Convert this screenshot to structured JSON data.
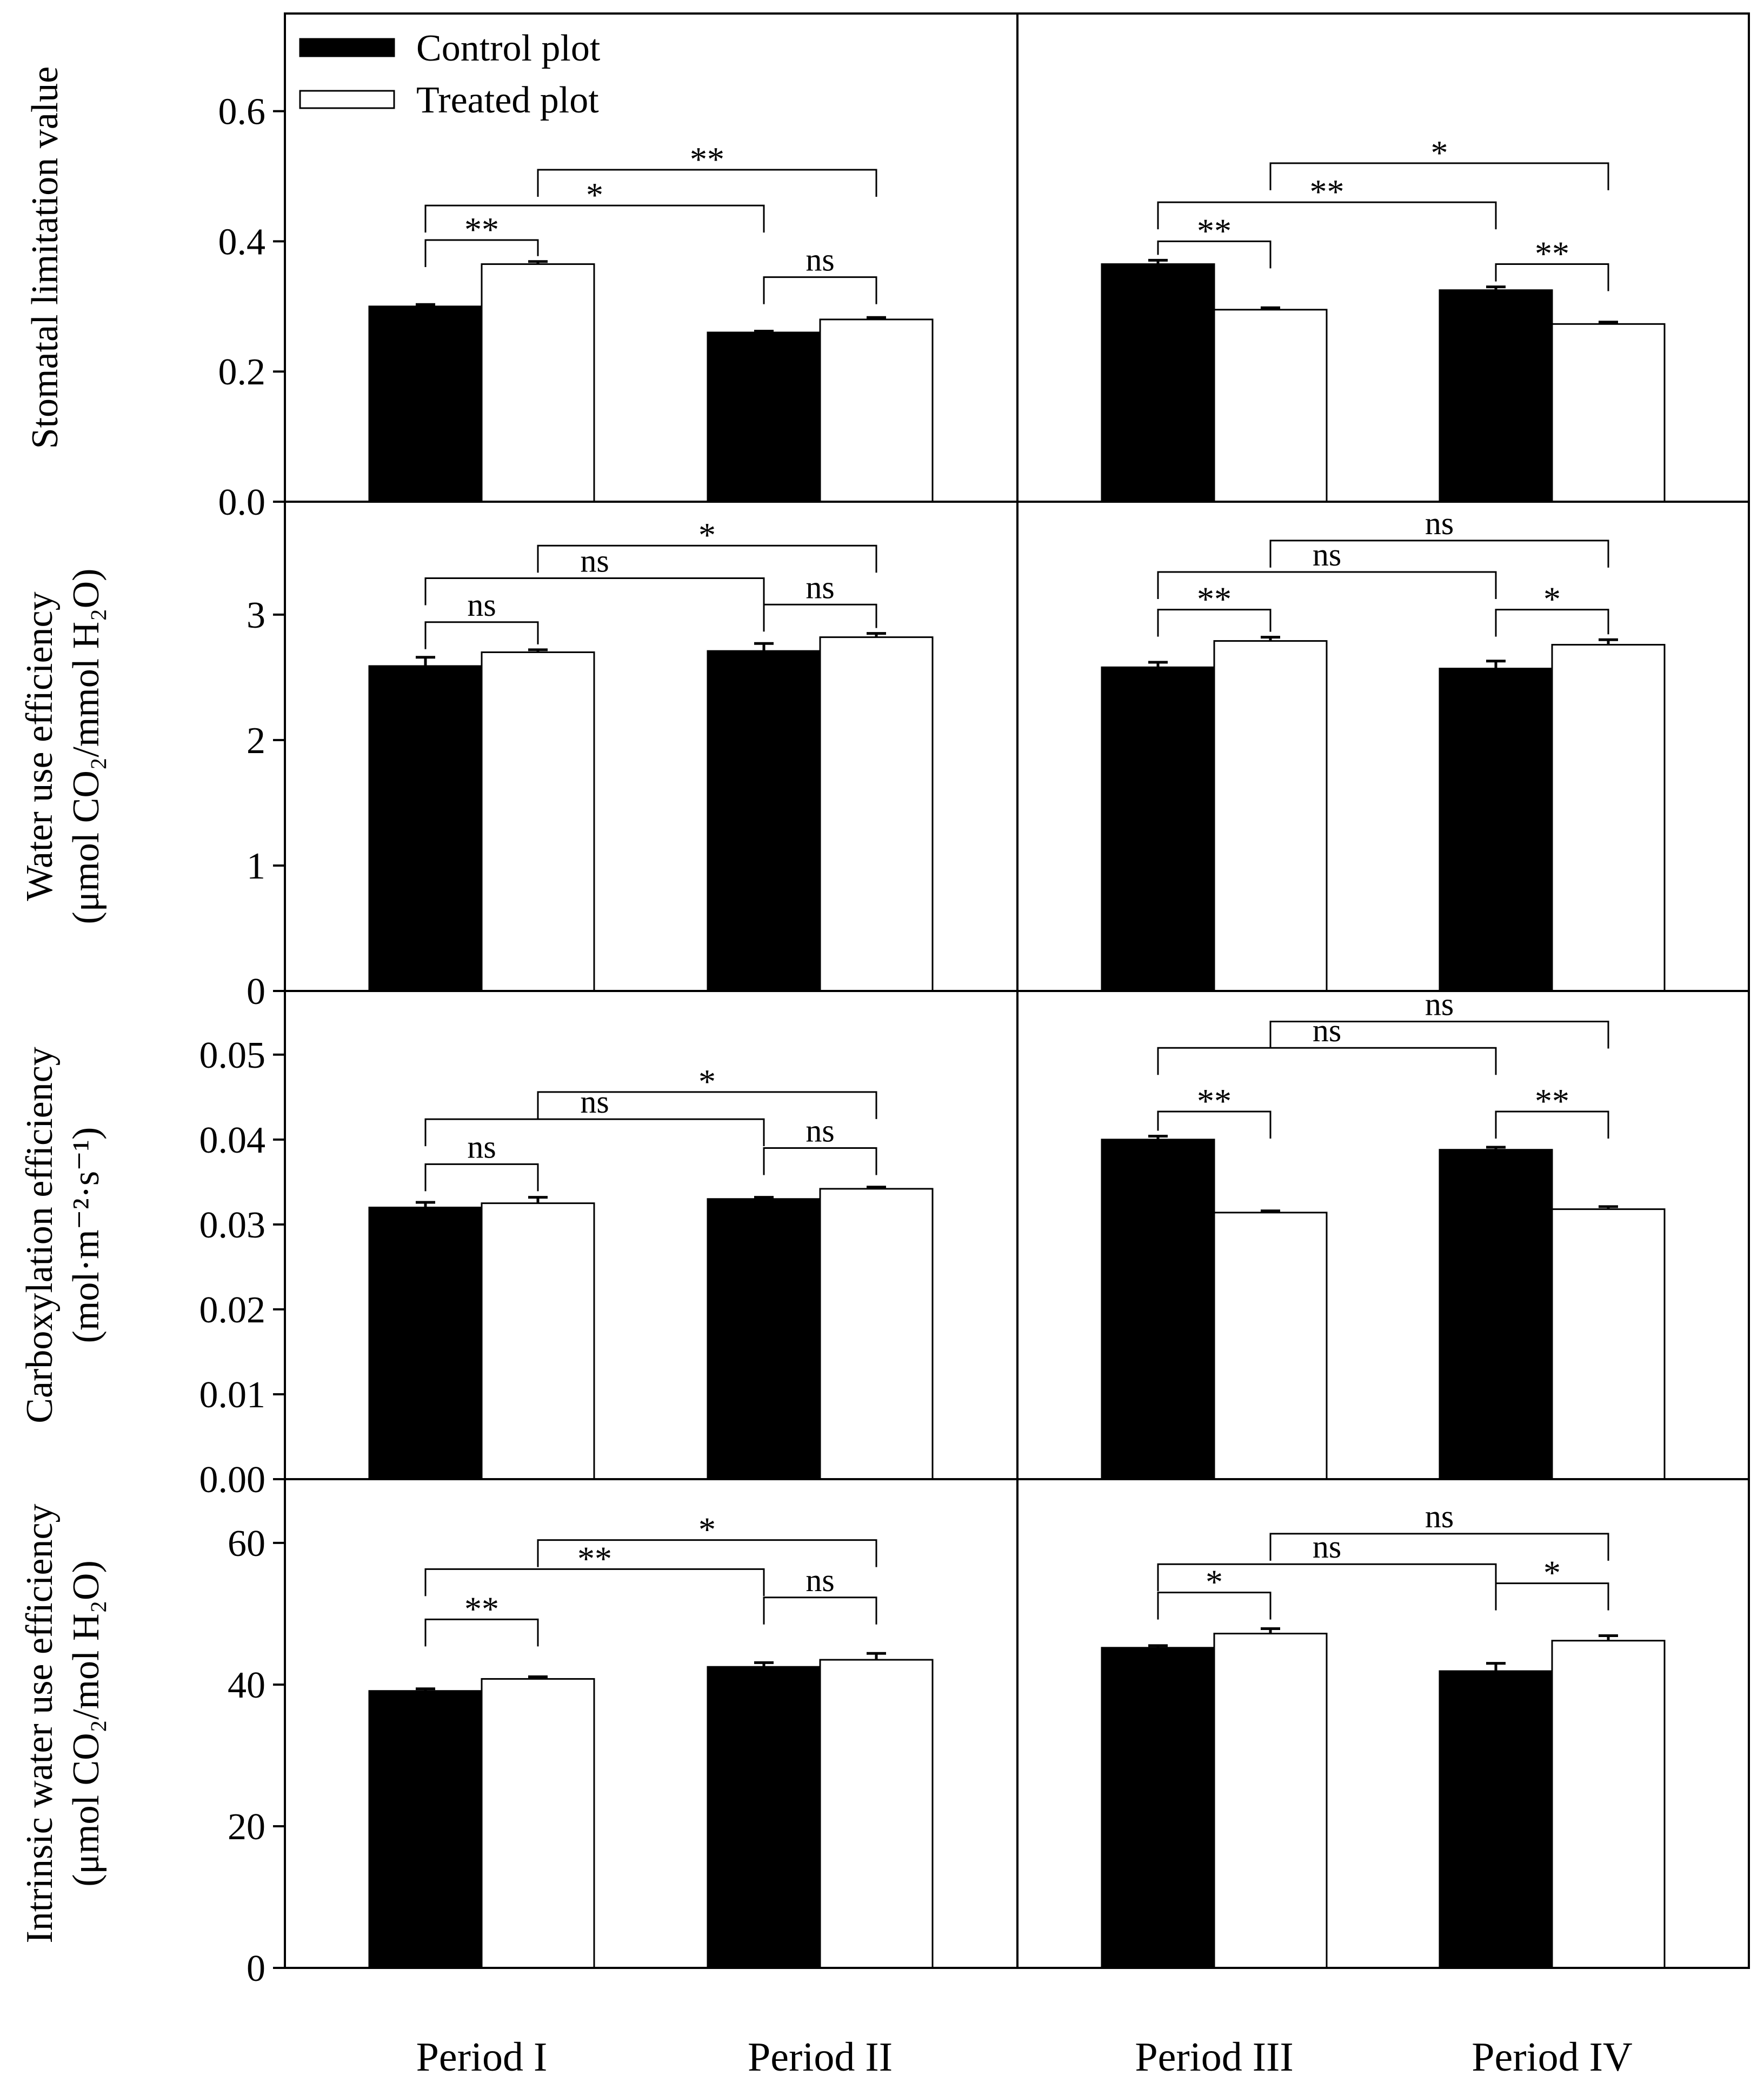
{
  "figure": {
    "legend": [
      {
        "label": "Control plot",
        "fill": "#000000"
      },
      {
        "label": "Treated plot",
        "fill": "#ffffff"
      }
    ],
    "xlabels": [
      "Period I",
      "Period II",
      "Period III",
      "Period IV"
    ]
  },
  "chart_data": [
    {
      "type": "bar",
      "title": "",
      "ylabel": "Stomatal limitation value",
      "ylabel2": "",
      "ylim": [
        0,
        0.75
      ],
      "yticks": [
        0.0,
        0.2,
        0.4,
        0.6
      ],
      "ytick_labels": [
        "0.0",
        "0.2",
        "0.4",
        "0.6"
      ],
      "categories": [
        "Period I",
        "Period II",
        "Period III",
        "Period IV"
      ],
      "series": [
        {
          "name": "Control plot",
          "values": [
            0.3,
            0.26,
            0.365,
            0.325
          ],
          "errors": [
            0.003,
            0.002,
            0.006,
            0.005
          ]
        },
        {
          "name": "Treated plot",
          "values": [
            0.365,
            0.28,
            0.295,
            0.273
          ],
          "errors": [
            0.004,
            0.003,
            0.003,
            0.003
          ]
        }
      ],
      "significance": [
        {
          "from": [
            0,
            0
          ],
          "to": [
            0,
            1
          ],
          "label": "**",
          "level": 0.402
        },
        {
          "from": [
            0,
            0
          ],
          "to": [
            1,
            0
          ],
          "label": "*",
          "level": 0.455
        },
        {
          "from": [
            0,
            1
          ],
          "to": [
            1,
            1
          ],
          "label": "**",
          "level": 0.51
        },
        {
          "from": [
            1,
            0
          ],
          "to": [
            1,
            1
          ],
          "label": "ns",
          "level": 0.345
        },
        {
          "from": [
            2,
            0
          ],
          "to": [
            2,
            1
          ],
          "label": "**",
          "level": 0.4
        },
        {
          "from": [
            2,
            0
          ],
          "to": [
            3,
            0
          ],
          "label": "**",
          "level": 0.46
        },
        {
          "from": [
            2,
            1
          ],
          "to": [
            3,
            1
          ],
          "label": "*",
          "level": 0.52
        },
        {
          "from": [
            3,
            0
          ],
          "to": [
            3,
            1
          ],
          "label": "**",
          "level": 0.365
        }
      ]
    },
    {
      "type": "bar",
      "title": "",
      "ylabel": "Water use efficiency",
      "ylabel2": "(μmol CO₂/mmol H₂O)",
      "ylim": [
        0,
        3.9
      ],
      "yticks": [
        0,
        1,
        2,
        3
      ],
      "ytick_labels": [
        "0",
        "1",
        "2",
        "3"
      ],
      "categories": [
        "Period I",
        "Period II",
        "Period III",
        "Period IV"
      ],
      "series": [
        {
          "name": "Control plot",
          "values": [
            2.59,
            2.71,
            2.58,
            2.57
          ],
          "errors": [
            0.07,
            0.06,
            0.04,
            0.06
          ]
        },
        {
          "name": "Treated plot",
          "values": [
            2.7,
            2.82,
            2.79,
            2.76
          ],
          "errors": [
            0.02,
            0.03,
            0.03,
            0.04
          ]
        }
      ],
      "significance": [
        {
          "from": [
            0,
            0
          ],
          "to": [
            0,
            1
          ],
          "label": "ns",
          "level": 2.94
        },
        {
          "from": [
            0,
            0
          ],
          "to": [
            1,
            0
          ],
          "label": "ns",
          "level": 3.29
        },
        {
          "from": [
            0,
            1
          ],
          "to": [
            1,
            1
          ],
          "label": "*",
          "level": 3.55
        },
        {
          "from": [
            1,
            0
          ],
          "to": [
            1,
            1
          ],
          "label": "ns",
          "level": 3.08
        },
        {
          "from": [
            2,
            0
          ],
          "to": [
            2,
            1
          ],
          "label": "**",
          "level": 3.04
        },
        {
          "from": [
            2,
            0
          ],
          "to": [
            3,
            0
          ],
          "label": "ns",
          "level": 3.34
        },
        {
          "from": [
            2,
            1
          ],
          "to": [
            3,
            1
          ],
          "label": "ns",
          "level": 3.59
        },
        {
          "from": [
            3,
            0
          ],
          "to": [
            3,
            1
          ],
          "label": "*",
          "level": 3.04
        }
      ]
    },
    {
      "type": "bar",
      "title": "",
      "ylabel": "Carboxylation efficiency",
      "ylabel2": "(mol·m⁻²·s⁻¹)",
      "ylim": [
        0,
        0.0575
      ],
      "yticks": [
        0.0,
        0.01,
        0.02,
        0.03,
        0.04,
        0.05
      ],
      "ytick_labels": [
        "0.00",
        "0.01",
        "0.02",
        "0.03",
        "0.04",
        "0.05"
      ],
      "categories": [
        "Period I",
        "Period II",
        "Period III",
        "Period IV"
      ],
      "series": [
        {
          "name": "Control plot",
          "values": [
            0.032,
            0.033,
            0.04,
            0.0388
          ],
          "errors": [
            0.0006,
            0.0002,
            0.0004,
            0.0003
          ]
        },
        {
          "name": "Treated plot",
          "values": [
            0.0325,
            0.0342,
            0.0314,
            0.0318
          ],
          "errors": [
            0.0007,
            0.0002,
            0.0002,
            0.0003
          ]
        }
      ],
      "significance": [
        {
          "from": [
            0,
            0
          ],
          "to": [
            0,
            1
          ],
          "label": "ns",
          "level": 0.0371
        },
        {
          "from": [
            0,
            0
          ],
          "to": [
            1,
            0
          ],
          "label": "ns",
          "level": 0.0424
        },
        {
          "from": [
            0,
            1
          ],
          "to": [
            1,
            1
          ],
          "label": "*",
          "level": 0.0456
        },
        {
          "from": [
            1,
            0
          ],
          "to": [
            1,
            1
          ],
          "label": "ns",
          "level": 0.039
        },
        {
          "from": [
            2,
            0
          ],
          "to": [
            2,
            1
          ],
          "label": "**",
          "level": 0.0433
        },
        {
          "from": [
            2,
            0
          ],
          "to": [
            3,
            0
          ],
          "label": "ns",
          "level": 0.0508
        },
        {
          "from": [
            2,
            1
          ],
          "to": [
            3,
            1
          ],
          "label": "ns",
          "level": 0.0539
        },
        {
          "from": [
            3,
            0
          ],
          "to": [
            3,
            1
          ],
          "label": "**",
          "level": 0.0433
        }
      ]
    },
    {
      "type": "bar",
      "title": "",
      "ylabel": "Intrinsic water use efficiency",
      "ylabel2": "(μmol CO₂/mol H₂O)",
      "ylim": [
        0,
        69
      ],
      "yticks": [
        0,
        20,
        40,
        60
      ],
      "ytick_labels": [
        "0",
        "20",
        "40",
        "60"
      ],
      "categories": [
        "Period I",
        "Period II",
        "Period III",
        "Period IV"
      ],
      "series": [
        {
          "name": "Control plot",
          "values": [
            39.1,
            42.5,
            45.2,
            41.9
          ],
          "errors": [
            0.3,
            0.6,
            0.3,
            1.1
          ]
        },
        {
          "name": "Treated plot",
          "values": [
            40.8,
            43.5,
            47.2,
            46.2
          ],
          "errors": [
            0.3,
            0.9,
            0.7,
            0.7
          ]
        }
      ],
      "significance": [
        {
          "from": [
            0,
            0
          ],
          "to": [
            0,
            1
          ],
          "label": "**",
          "level": 49.2
        },
        {
          "from": [
            0,
            0
          ],
          "to": [
            1,
            0
          ],
          "label": "**",
          "level": 56.3
        },
        {
          "from": [
            0,
            1
          ],
          "to": [
            1,
            1
          ],
          "label": "*",
          "level": 60.4
        },
        {
          "from": [
            1,
            0
          ],
          "to": [
            1,
            1
          ],
          "label": "ns",
          "level": 52.3
        },
        {
          "from": [
            2,
            0
          ],
          "to": [
            2,
            1
          ],
          "label": "*",
          "level": 53.0
        },
        {
          "from": [
            2,
            0
          ],
          "to": [
            3,
            0
          ],
          "label": "ns",
          "level": 57.0
        },
        {
          "from": [
            2,
            1
          ],
          "to": [
            3,
            1
          ],
          "label": "ns",
          "level": 61.3
        },
        {
          "from": [
            3,
            0
          ],
          "to": [
            3,
            1
          ],
          "label": "*",
          "level": 54.3
        }
      ]
    }
  ]
}
